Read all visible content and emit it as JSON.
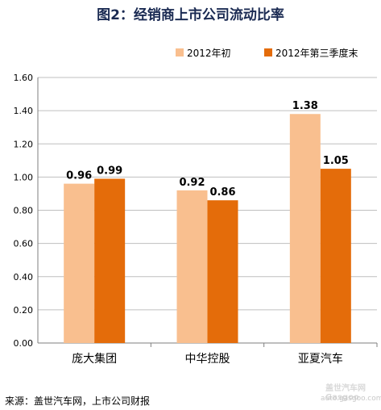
{
  "chart_data": {
    "type": "bar",
    "title": "图2：经销商上市公司流动比率",
    "categories": [
      "庞大集团",
      "中华控股",
      "亚夏汽车"
    ],
    "series": [
      {
        "name": "2012年初",
        "values": [
          0.96,
          0.92,
          1.38
        ],
        "color": "#f9bf8f"
      },
      {
        "name": "2012年第三季度末",
        "values": [
          0.99,
          0.86,
          1.05
        ],
        "color": "#e46c0a"
      }
    ],
    "data_labels": [
      [
        "0.96",
        "0.99"
      ],
      [
        "0.92",
        "0.86"
      ],
      [
        "1.38",
        "1.05"
      ]
    ],
    "ylim": [
      0,
      1.6
    ],
    "yticks": [
      "0.00",
      "0.20",
      "0.40",
      "0.60",
      "0.80",
      "1.00",
      "1.20",
      "1.40",
      "1.60"
    ],
    "xlabel": "",
    "ylabel": "",
    "grid": true,
    "legend_position": "top-right"
  },
  "source_text": "来源：盖世汽车网，上市公司财报",
  "watermark": {
    "brand": "Gasgoo",
    "brand_cn": "盖世汽车网",
    "url": "auto.gasgoo.com"
  }
}
